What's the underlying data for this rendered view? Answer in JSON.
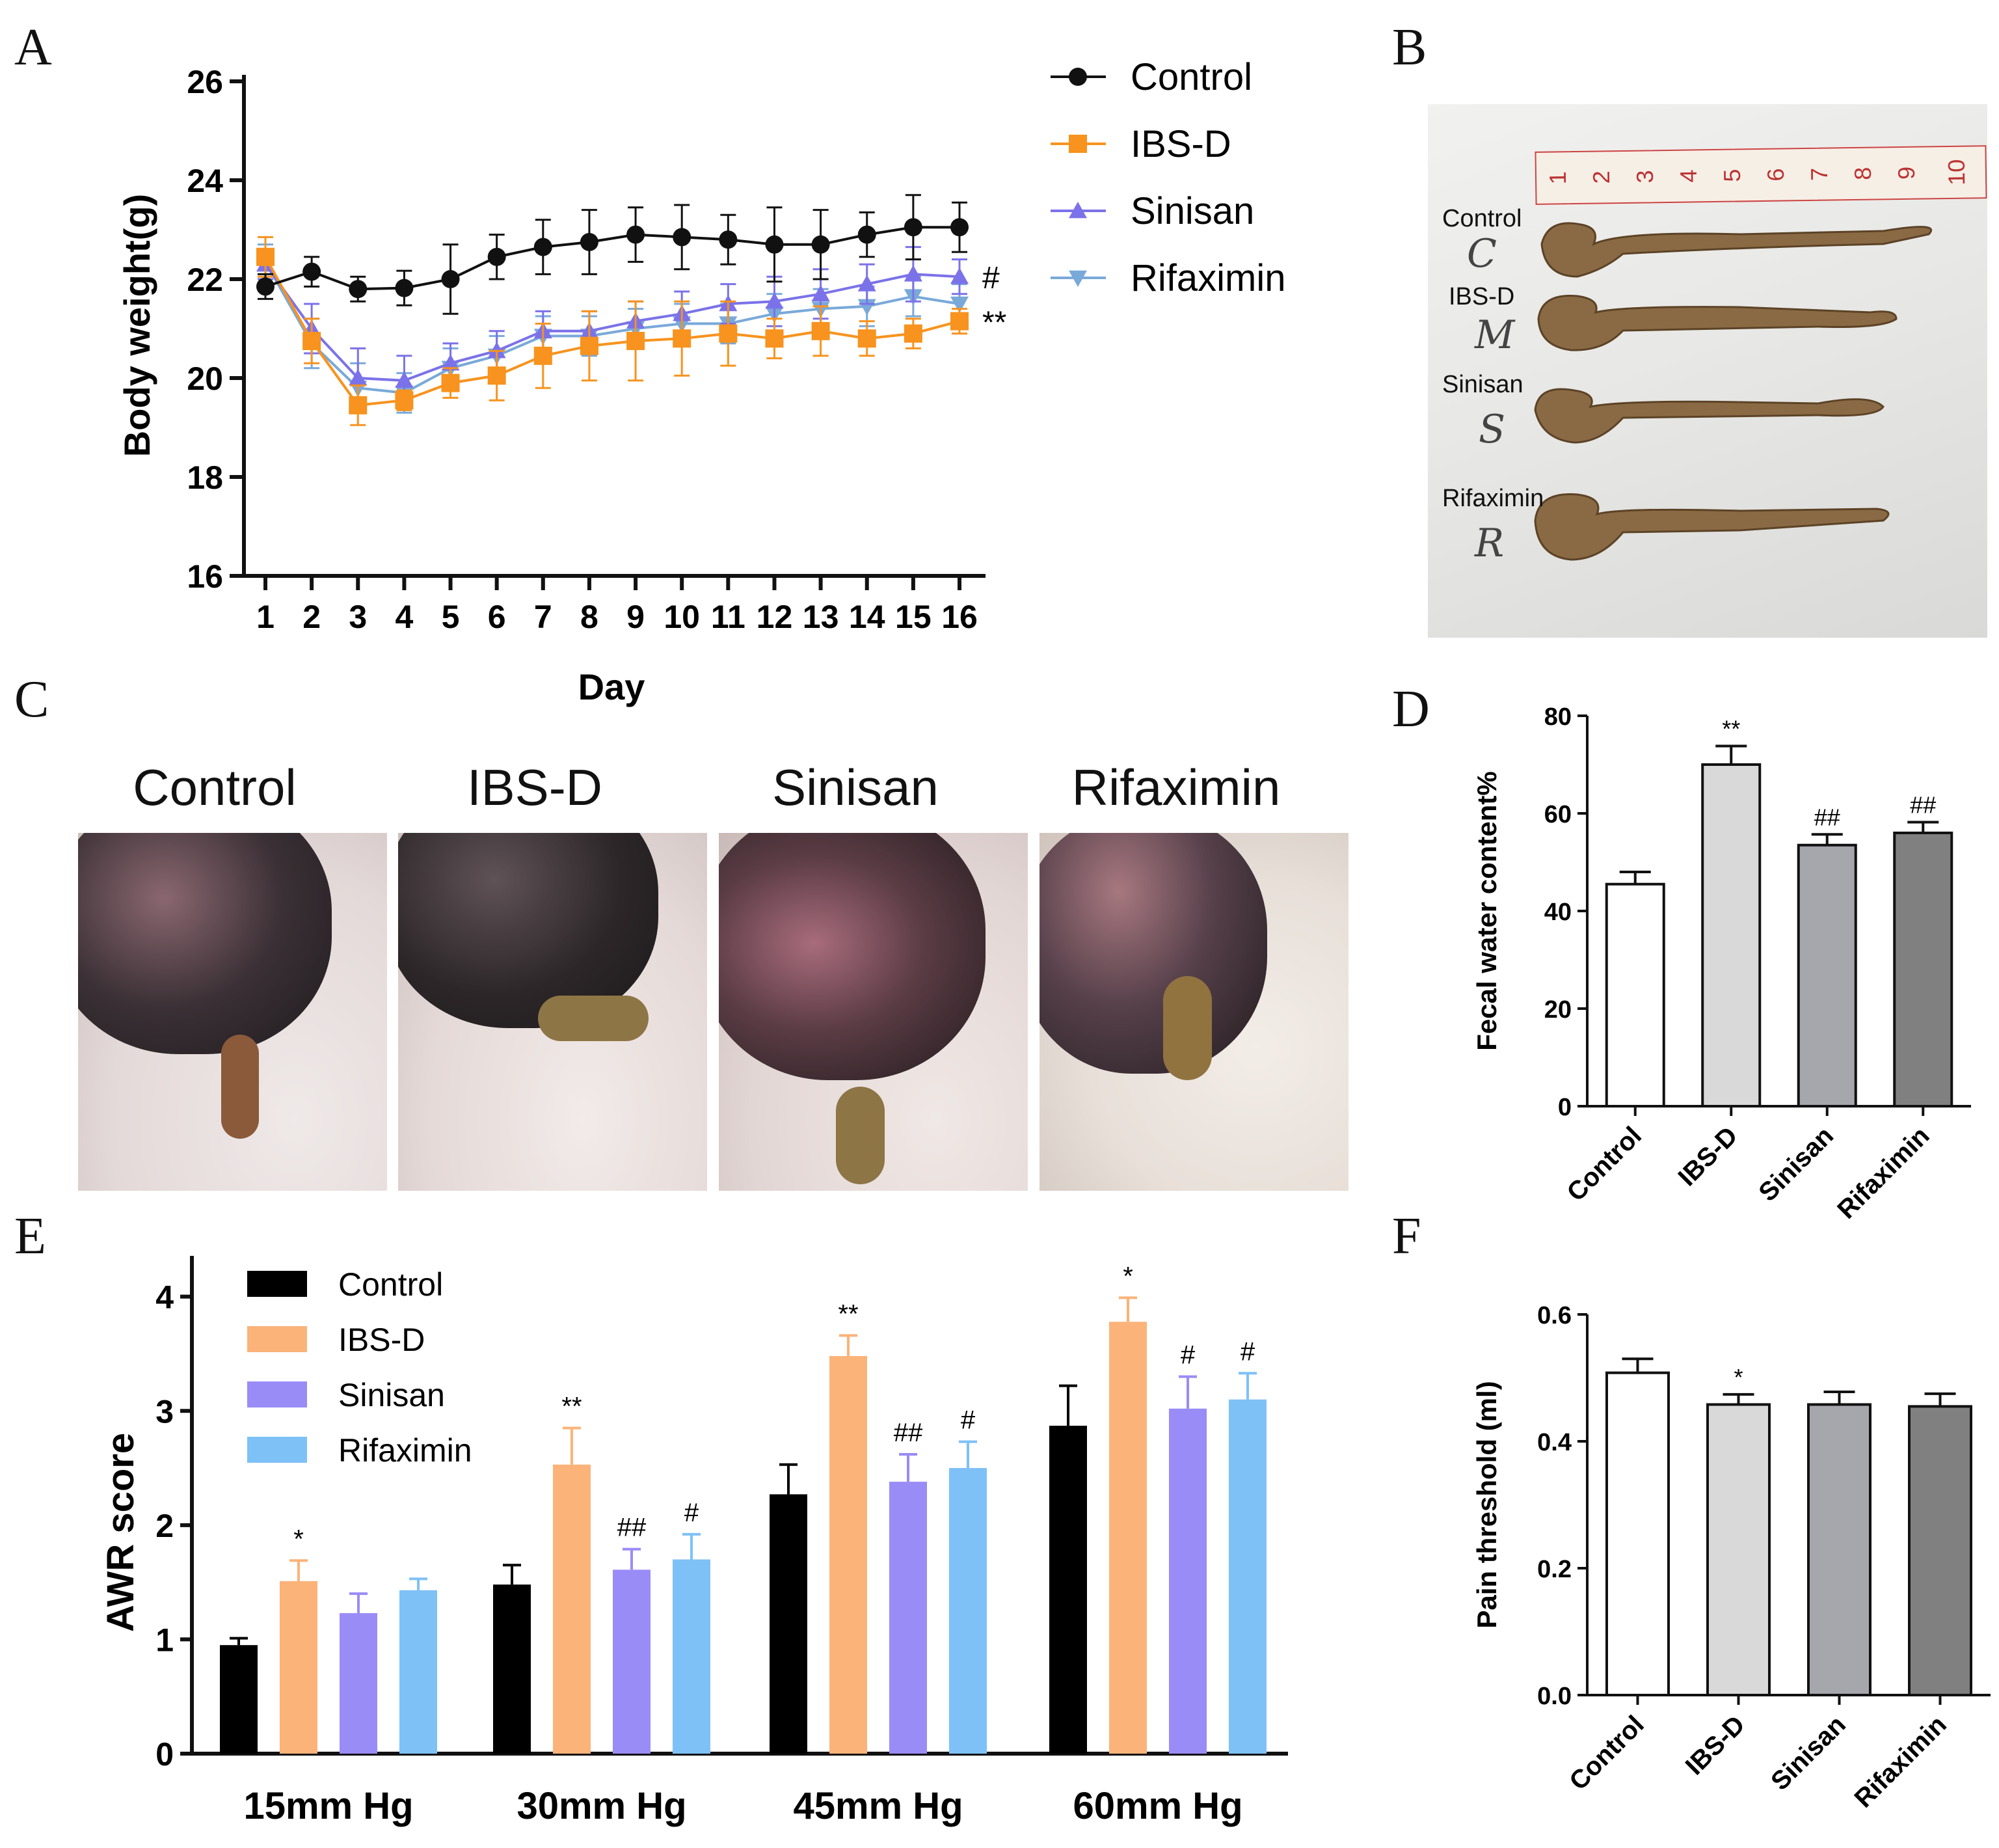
{
  "panels": {
    "a": "A",
    "b": "B",
    "c": "C",
    "d": "D",
    "e": "E",
    "f": "F"
  },
  "colors": {
    "control": "#111111",
    "ibsd": "#f7931e",
    "sinisan": "#7b72e9",
    "rifaximin": "#79a9d9",
    "bar_ibsd_light": "#d9d9d9",
    "bar_sinisan": "#a6a6ad",
    "bar_rifaximin": "#808080",
    "awr_control": "#000000",
    "awr_ibsd": "#fbb379",
    "awr_sinisan": "#9a8cf7",
    "awr_rifaximin": "#7ec1f7"
  },
  "photo_b": {
    "ruler_numbers": [
      "1",
      "2",
      "3",
      "4",
      "5",
      "6",
      "7",
      "8",
      "9",
      "10"
    ],
    "labels": [
      "Control",
      "IBS-D",
      "Sinisan",
      "Rifaximin"
    ],
    "handwritten": [
      "C",
      "M",
      "S",
      "R"
    ]
  },
  "photo_c": {
    "titles": [
      "Control",
      "IBS-D",
      "Sinisan",
      "Rifaximin"
    ]
  },
  "chart_data": [
    {
      "id": "A",
      "type": "line",
      "xlabel": "Day",
      "ylabel": "Body weight(g)",
      "ylim": [
        16,
        26
      ],
      "yticks": [
        16,
        18,
        20,
        22,
        24,
        26
      ],
      "x": [
        1,
        2,
        3,
        4,
        5,
        6,
        7,
        8,
        9,
        10,
        11,
        12,
        13,
        14,
        15,
        16
      ],
      "series": [
        {
          "name": "Control",
          "marker": "circle",
          "values": [
            21.85,
            22.15,
            21.8,
            21.82,
            22.0,
            22.45,
            22.65,
            22.75,
            22.9,
            22.85,
            22.8,
            22.7,
            22.7,
            22.9,
            23.05,
            23.05
          ],
          "errors": [
            0.25,
            0.3,
            0.25,
            0.35,
            0.7,
            0.45,
            0.55,
            0.65,
            0.55,
            0.65,
            0.5,
            0.75,
            0.7,
            0.45,
            0.65,
            0.5
          ]
        },
        {
          "name": "IBS-D",
          "marker": "square",
          "values": [
            22.45,
            20.75,
            19.45,
            19.55,
            19.9,
            20.05,
            20.45,
            20.65,
            20.75,
            20.8,
            20.9,
            20.8,
            20.95,
            20.8,
            20.9,
            21.15
          ],
          "errors": [
            0.4,
            0.45,
            0.4,
            0.2,
            0.3,
            0.5,
            0.65,
            0.7,
            0.8,
            0.75,
            0.65,
            0.4,
            0.5,
            0.35,
            0.3,
            0.25
          ]
        },
        {
          "name": "Sinisan",
          "marker": "triangle-up",
          "values": [
            22.3,
            21.0,
            20.0,
            19.95,
            20.3,
            20.55,
            20.95,
            20.95,
            21.15,
            21.3,
            21.5,
            21.55,
            21.7,
            21.9,
            22.1,
            22.05
          ],
          "errors": [
            0.3,
            0.5,
            0.6,
            0.5,
            0.4,
            0.4,
            0.4,
            0.4,
            0.4,
            0.45,
            0.4,
            0.5,
            0.5,
            0.4,
            0.55,
            0.35
          ]
        },
        {
          "name": "Rifaximin",
          "marker": "triangle-down",
          "values": [
            22.35,
            20.7,
            19.8,
            19.7,
            20.2,
            20.45,
            20.85,
            20.85,
            21.0,
            21.1,
            21.1,
            21.3,
            21.4,
            21.45,
            21.65,
            21.5
          ],
          "errors": [
            0.35,
            0.5,
            0.5,
            0.4,
            0.4,
            0.4,
            0.4,
            0.4,
            0.4,
            0.4,
            0.4,
            0.4,
            0.4,
            0.4,
            0.4,
            0.4
          ]
        }
      ],
      "annotations": [
        {
          "series": "Sinisan",
          "text": "#"
        },
        {
          "series": "IBS-D",
          "text": "**"
        }
      ]
    },
    {
      "id": "D",
      "type": "bar",
      "ylabel": "Fecal water content%",
      "ylim": [
        0,
        80
      ],
      "yticks": [
        0,
        20,
        40,
        60,
        80
      ],
      "categories": [
        "Control",
        "IBS-D",
        "Sinisan",
        "Rifaximin"
      ],
      "values": [
        45.5,
        70.0,
        53.5,
        56.0
      ],
      "errors": [
        2.5,
        3.8,
        2.2,
        2.2
      ],
      "marks": [
        "",
        "**",
        "##",
        "##"
      ]
    },
    {
      "id": "E",
      "type": "bar",
      "ylabel": "AWR score",
      "ylim": [
        0,
        4.3
      ],
      "yticks": [
        0,
        1,
        2,
        3,
        4
      ],
      "categories": [
        "15mm Hg",
        "30mm Hg",
        "45mm Hg",
        "60mm Hg"
      ],
      "series": [
        {
          "name": "Control",
          "values": [
            0.95,
            1.48,
            2.27,
            2.87
          ],
          "errors": [
            0.06,
            0.17,
            0.26,
            0.35
          ],
          "marks": [
            "",
            "",
            "",
            ""
          ]
        },
        {
          "name": "IBS-D",
          "values": [
            1.51,
            2.53,
            3.48,
            3.78
          ],
          "errors": [
            0.18,
            0.32,
            0.18,
            0.21
          ],
          "marks": [
            "*",
            "**",
            "**",
            "*"
          ]
        },
        {
          "name": "Sinisan",
          "values": [
            1.23,
            1.61,
            2.38,
            3.02
          ],
          "errors": [
            0.17,
            0.18,
            0.24,
            0.28
          ],
          "marks": [
            "",
            "##",
            "##",
            "#"
          ]
        },
        {
          "name": "Rifaximin",
          "values": [
            1.43,
            1.7,
            2.5,
            3.1
          ],
          "errors": [
            0.1,
            0.22,
            0.23,
            0.23
          ],
          "marks": [
            "",
            "#",
            "#",
            "#"
          ]
        }
      ]
    },
    {
      "id": "F",
      "type": "bar",
      "ylabel": "Pain threshold (ml)",
      "ylim": [
        0,
        0.6
      ],
      "yticks": [
        "0.0",
        "0.2",
        "0.4",
        "0.6"
      ],
      "categories": [
        "Control",
        "IBS-D",
        "Sinisan",
        "Rifaximin"
      ],
      "values": [
        0.508,
        0.458,
        0.458,
        0.455
      ],
      "errors": [
        0.022,
        0.016,
        0.02,
        0.02
      ],
      "marks": [
        "",
        "*",
        "",
        ""
      ]
    }
  ]
}
